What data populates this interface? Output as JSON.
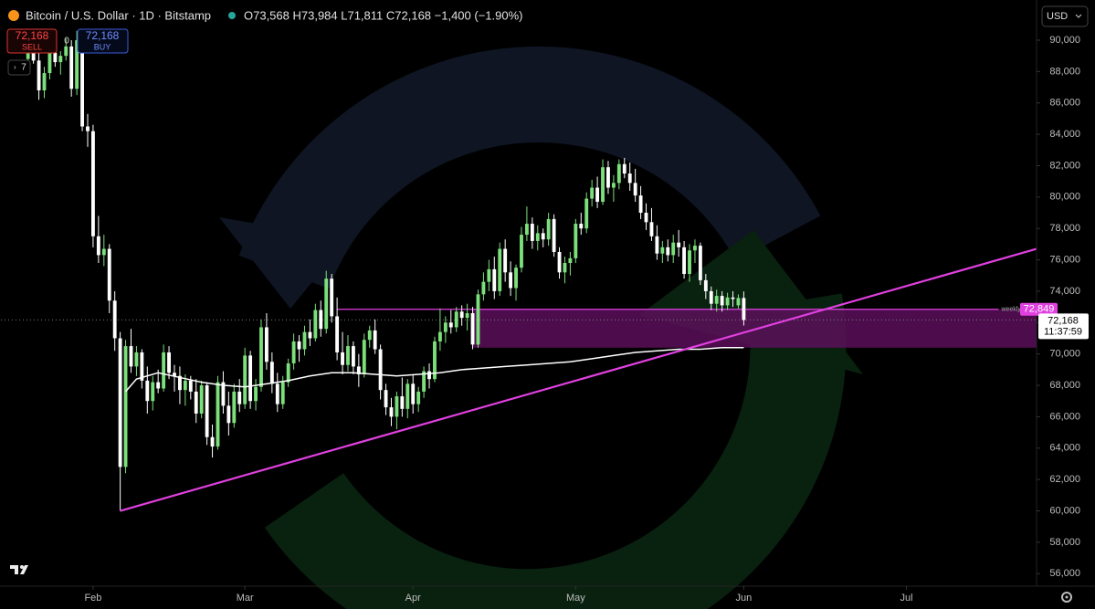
{
  "toolbar": {
    "symbol": "Bitcoin / U.S. Dollar · 1D · Bitstamp",
    "ohlc": "O73,568 H73,984 L71,811 C72,168 −1,400 (−1.90%)",
    "sell_price": "72,168",
    "sell_label": "SELL",
    "spread": "0",
    "buy_price": "72,168",
    "buy_label": "BUY",
    "interval": "7",
    "currency": "USD"
  },
  "chart_data": {
    "type": "candlestick",
    "up_color": "#7be07b",
    "down_color": "#ffffff",
    "ma_color": "#ffffff",
    "trend_color": "#e040e0",
    "xlim": [
      -5,
      186
    ],
    "xticks": [
      {
        "value": 12,
        "label": "Feb"
      },
      {
        "value": 40,
        "label": "Mar"
      },
      {
        "value": 71,
        "label": "Apr"
      },
      {
        "value": 101,
        "label": "May"
      },
      {
        "value": 132,
        "label": "Jun"
      },
      {
        "value": 162,
        "label": "Jul"
      }
    ],
    "ylim": [
      55200,
      92560
    ],
    "yticks": [
      {
        "value": 56000,
        "label": "56,000"
      },
      {
        "value": 58000,
        "label": "58,000"
      },
      {
        "value": 60000,
        "label": "60,000"
      },
      {
        "value": 62000,
        "label": "62,000"
      },
      {
        "value": 64000,
        "label": "64,000"
      },
      {
        "value": 66000,
        "label": "66,000"
      },
      {
        "value": 68000,
        "label": "68,000"
      },
      {
        "value": 70000,
        "label": "70,000"
      },
      {
        "value": 72000,
        "label": "72,000"
      },
      {
        "value": 74000,
        "label": "74,000"
      },
      {
        "value": 76000,
        "label": "76,000"
      },
      {
        "value": 78000,
        "label": "78,000"
      },
      {
        "value": 80000,
        "label": "80,000"
      },
      {
        "value": 82000,
        "label": "82,000"
      },
      {
        "value": 84000,
        "label": "84,000"
      },
      {
        "value": 86000,
        "label": "86,000"
      },
      {
        "value": 88000,
        "label": "88,000"
      },
      {
        "value": 90000,
        "label": "90,000"
      }
    ],
    "candles": [
      [
        88800,
        89800,
        88200,
        89300
      ],
      [
        89300,
        90400,
        88500,
        88700
      ],
      [
        88700,
        89400,
        86200,
        86800
      ],
      [
        86800,
        88300,
        86300,
        87900
      ],
      [
        87900,
        89600,
        87500,
        89200
      ],
      [
        89200,
        89700,
        88300,
        88600
      ],
      [
        88600,
        89300,
        87800,
        89000
      ],
      [
        89000,
        90100,
        88700,
        89600
      ],
      [
        89600,
        90000,
        86400,
        86900
      ],
      [
        86900,
        90600,
        86500,
        90000
      ],
      [
        90000,
        90400,
        84200,
        84500
      ],
      [
        84500,
        85300,
        83200,
        84200
      ],
      [
        84200,
        84600,
        76800,
        77500
      ],
      [
        77500,
        78800,
        75800,
        76300
      ],
      [
        76300,
        77600,
        75600,
        76700
      ],
      [
        76700,
        77000,
        72600,
        73400
      ],
      [
        73400,
        74000,
        70200,
        71000
      ],
      [
        71000,
        71400,
        60000,
        62800
      ],
      [
        62800,
        70900,
        62400,
        70500
      ],
      [
        70500,
        71600,
        68800,
        69200
      ],
      [
        69200,
        70500,
        68600,
        70100
      ],
      [
        70100,
        70300,
        67800,
        68300
      ],
      [
        68300,
        69200,
        66200,
        67000
      ],
      [
        67000,
        68600,
        66400,
        68200
      ],
      [
        68200,
        69000,
        67500,
        67800
      ],
      [
        67800,
        70600,
        67600,
        70100
      ],
      [
        70100,
        70500,
        68400,
        68800
      ],
      [
        68800,
        69300,
        67600,
        68600
      ],
      [
        68600,
        69200,
        66800,
        67700
      ],
      [
        67700,
        68700,
        66700,
        68300
      ],
      [
        68300,
        68600,
        67100,
        67600
      ],
      [
        67600,
        68400,
        65600,
        66200
      ],
      [
        66200,
        68300,
        65900,
        68000
      ],
      [
        68000,
        68200,
        64200,
        64700
      ],
      [
        64700,
        65500,
        63400,
        64100
      ],
      [
        64100,
        68600,
        63900,
        68200
      ],
      [
        68200,
        68900,
        66200,
        66700
      ],
      [
        66700,
        67600,
        64800,
        65600
      ],
      [
        65600,
        68100,
        65300,
        67600
      ],
      [
        67600,
        68400,
        66300,
        66800
      ],
      [
        66800,
        70400,
        66500,
        69900
      ],
      [
        69900,
        70200,
        66500,
        67000
      ],
      [
        67000,
        68400,
        66400,
        67900
      ],
      [
        67900,
        72200,
        67600,
        71700
      ],
      [
        71700,
        72600,
        69000,
        69500
      ],
      [
        69500,
        70100,
        67500,
        68100
      ],
      [
        68100,
        68800,
        66300,
        66800
      ],
      [
        66800,
        68600,
        66500,
        68200
      ],
      [
        68200,
        69700,
        67900,
        69400
      ],
      [
        69400,
        71300,
        69000,
        70800
      ],
      [
        70800,
        71200,
        69500,
        70300
      ],
      [
        70300,
        71800,
        69900,
        71400
      ],
      [
        71400,
        72200,
        70500,
        71000
      ],
      [
        71000,
        73200,
        70800,
        72800
      ],
      [
        72800,
        73400,
        71100,
        71600
      ],
      [
        71600,
        75300,
        71300,
        74800
      ],
      [
        74800,
        75100,
        72000,
        72400
      ],
      [
        72400,
        73600,
        69600,
        70100
      ],
      [
        70100,
        71400,
        68700,
        69300
      ],
      [
        69300,
        71200,
        68900,
        70500
      ],
      [
        70500,
        70800,
        68700,
        69200
      ],
      [
        69200,
        70000,
        67900,
        68700
      ],
      [
        68700,
        71300,
        68500,
        70900
      ],
      [
        70900,
        71800,
        70400,
        71500
      ],
      [
        71500,
        72200,
        70000,
        70300
      ],
      [
        70300,
        70600,
        67100,
        67700
      ],
      [
        67700,
        68100,
        66100,
        66600
      ],
      [
        66600,
        67200,
        65400,
        66000
      ],
      [
        66000,
        67600,
        65200,
        67300
      ],
      [
        67300,
        68500,
        66000,
        66500
      ],
      [
        66500,
        68400,
        65900,
        68100
      ],
      [
        68100,
        68700,
        66200,
        66800
      ],
      [
        66800,
        67900,
        66300,
        67600
      ],
      [
        67600,
        69200,
        67200,
        68900
      ],
      [
        68900,
        69400,
        67800,
        68400
      ],
      [
        68400,
        71100,
        68200,
        70800
      ],
      [
        70800,
        72900,
        70200,
        71400
      ],
      [
        71400,
        72400,
        70700,
        72000
      ],
      [
        72000,
        72800,
        71300,
        71700
      ],
      [
        71700,
        73000,
        71400,
        72700
      ],
      [
        72700,
        73100,
        71800,
        72300
      ],
      [
        72300,
        73200,
        71500,
        72600
      ],
      [
        72600,
        73000,
        70300,
        70600
      ],
      [
        70600,
        74100,
        70400,
        73800
      ],
      [
        73800,
        75200,
        73400,
        74600
      ],
      [
        74600,
        76000,
        74000,
        75400
      ],
      [
        75400,
        76200,
        73500,
        74000
      ],
      [
        74000,
        77100,
        73700,
        76700
      ],
      [
        76700,
        77300,
        74600,
        75200
      ],
      [
        75200,
        75900,
        73700,
        74200
      ],
      [
        74200,
        75700,
        73400,
        75500
      ],
      [
        75500,
        78100,
        75200,
        77600
      ],
      [
        77600,
        79400,
        77200,
        78300
      ],
      [
        78300,
        78700,
        76700,
        77200
      ],
      [
        77200,
        78200,
        76600,
        77700
      ],
      [
        77700,
        78000,
        76800,
        77300
      ],
      [
        77300,
        79000,
        76900,
        78600
      ],
      [
        78600,
        78900,
        76200,
        76500
      ],
      [
        76500,
        76800,
        74800,
        75200
      ],
      [
        75200,
        76200,
        74500,
        75800
      ],
      [
        75800,
        76500,
        75000,
        76100
      ],
      [
        76100,
        78600,
        75800,
        78300
      ],
      [
        78300,
        79000,
        77600,
        78000
      ],
      [
        78000,
        80300,
        77700,
        79900
      ],
      [
        79900,
        81100,
        79400,
        80600
      ],
      [
        80600,
        81300,
        79300,
        79700
      ],
      [
        79700,
        82400,
        79500,
        81900
      ],
      [
        81900,
        82300,
        80200,
        80600
      ],
      [
        80600,
        81400,
        79700,
        80900
      ],
      [
        80900,
        82400,
        80500,
        82100
      ],
      [
        82100,
        82500,
        81200,
        81500
      ],
      [
        81500,
        82200,
        80400,
        80900
      ],
      [
        80900,
        81800,
        79700,
        80100
      ],
      [
        80100,
        80700,
        78600,
        79000
      ],
      [
        79000,
        79600,
        77900,
        78400
      ],
      [
        78400,
        79300,
        77200,
        77500
      ],
      [
        77500,
        78200,
        76000,
        76400
      ],
      [
        76400,
        77200,
        75800,
        76800
      ],
      [
        76800,
        77300,
        75900,
        76300
      ],
      [
        76300,
        77600,
        75800,
        77100
      ],
      [
        77100,
        77900,
        76200,
        76800
      ],
      [
        76800,
        77200,
        74800,
        75100
      ],
      [
        75100,
        77000,
        74600,
        76600
      ],
      [
        76600,
        77300,
        75800,
        76900
      ],
      [
        76900,
        77100,
        74400,
        74700
      ],
      [
        74700,
        75100,
        73500,
        74000
      ],
      [
        74000,
        74300,
        72800,
        73200
      ],
      [
        73200,
        74100,
        72700,
        73700
      ],
      [
        73700,
        74000,
        72700,
        73100
      ],
      [
        73100,
        73900,
        72800,
        73600
      ],
      [
        73600,
        74000,
        73000,
        73500
      ],
      [
        73100,
        73800,
        72900,
        73568
      ],
      [
        73568,
        73984,
        71811,
        72168
      ]
    ],
    "ma": {
      "x": [
        18,
        20,
        24,
        28,
        32,
        36,
        40,
        44,
        48,
        52,
        56,
        60,
        64,
        68,
        72,
        76,
        80,
        84,
        88,
        92,
        96,
        100,
        104,
        108,
        112,
        116,
        120,
        124,
        128,
        132
      ],
      "values": [
        67600,
        68400,
        68800,
        68500,
        68200,
        68000,
        67900,
        68100,
        68300,
        68600,
        68800,
        68800,
        68700,
        68600,
        68700,
        68800,
        69000,
        69100,
        69200,
        69300,
        69400,
        69500,
        69700,
        69900,
        70100,
        70200,
        70300,
        70300,
        70400,
        70400
      ]
    },
    "trendline": {
      "x": [
        17,
        186
      ],
      "values": [
        60000,
        76700
      ]
    },
    "zone": {
      "x": [
        82,
        186
      ],
      "values": [
        72849,
        70400
      ]
    },
    "sr_level": {
      "label": "weekly s/r",
      "x": [
        57,
        179
      ],
      "value": 72849,
      "value_label": "72,849"
    },
    "current": {
      "value": 72168,
      "value_label": "72,168",
      "countdown": "11:37:59"
    }
  }
}
